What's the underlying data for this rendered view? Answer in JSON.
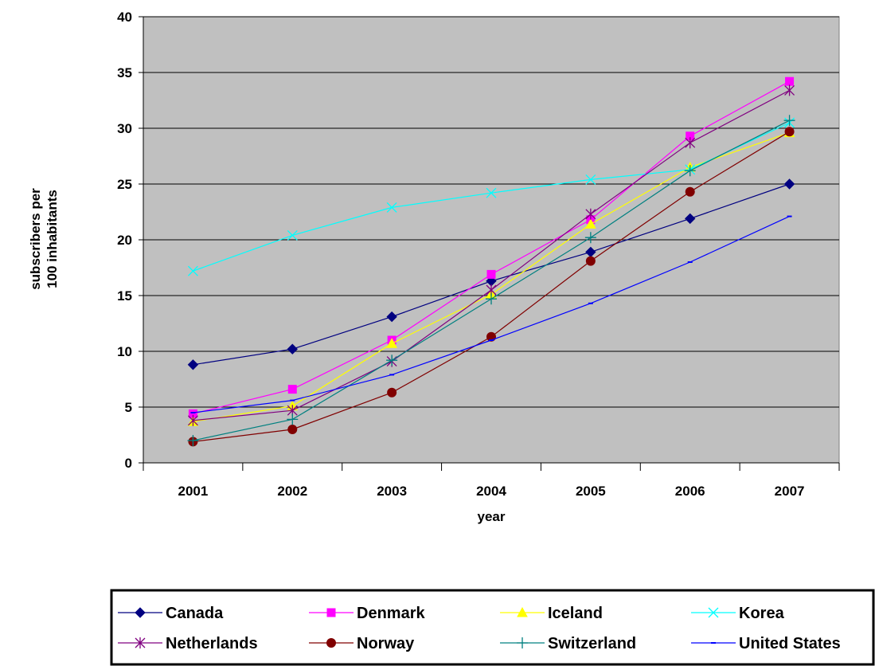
{
  "chart_data": {
    "type": "line",
    "title": "",
    "xlabel": "year",
    "ylabel": "subscribers per 100 inhabitants",
    "ylabel_lines": [
      "subscribers per",
      "100 inhabitants"
    ],
    "categories": [
      "2001",
      "2002",
      "2003",
      "2004",
      "2005",
      "2006",
      "2007"
    ],
    "ylim": [
      0,
      40
    ],
    "yticks": [
      "0",
      "5",
      "10",
      "15",
      "20",
      "25",
      "30",
      "35",
      "40"
    ],
    "grid": true,
    "plot_background": "#c0c0c0",
    "legend_position": "bottom",
    "series": [
      {
        "name": "Canada",
        "color": "#000080",
        "marker": "diamond",
        "values": [
          8.8,
          10.2,
          13.1,
          16.3,
          18.9,
          21.9,
          25.0
        ]
      },
      {
        "name": "Denmark",
        "color": "#ff00ff",
        "marker": "square",
        "values": [
          4.4,
          6.6,
          11.0,
          16.9,
          21.8,
          29.3,
          34.2
        ]
      },
      {
        "name": "Iceland",
        "color": "#ffff00",
        "marker": "triangle",
        "values": [
          3.7,
          5.1,
          10.7,
          15.1,
          21.4,
          26.5,
          29.6
        ]
      },
      {
        "name": "Korea",
        "color": "#00ffff",
        "marker": "x",
        "values": [
          17.2,
          20.4,
          22.9,
          24.2,
          25.4,
          26.3,
          30.5
        ]
      },
      {
        "name": "Netherlands",
        "color": "#800080",
        "marker": "star",
        "values": [
          3.8,
          4.7,
          9.1,
          15.5,
          22.3,
          28.7,
          33.4
        ]
      },
      {
        "name": "Norway",
        "color": "#800000",
        "marker": "circle",
        "values": [
          1.9,
          3.0,
          6.3,
          11.3,
          18.1,
          24.3,
          29.7
        ]
      },
      {
        "name": "Switzerland",
        "color": "#008080",
        "marker": "plus",
        "values": [
          2.0,
          3.9,
          9.2,
          14.7,
          20.2,
          26.2,
          30.7
        ]
      },
      {
        "name": "United States",
        "color": "#0000ff",
        "marker": "dash",
        "values": [
          4.5,
          5.6,
          7.9,
          11.0,
          14.3,
          18.0,
          22.1
        ]
      }
    ]
  }
}
